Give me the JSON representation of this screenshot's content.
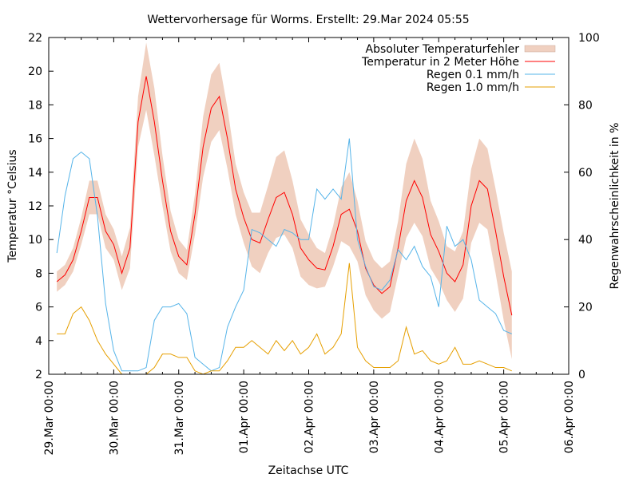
{
  "chart_data": {
    "type": "line",
    "title": "Wettervorhersage für Worms. Erstellt: 29.Mar 2024 05:55",
    "xlabel": "Zeitachse UTC",
    "ylabel": "Temperatur °Celsius",
    "y2label": "Regenwahrscheinlichkeit in %",
    "ylim": [
      2,
      22
    ],
    "y2lim": [
      0,
      100
    ],
    "yticks": [
      "2",
      "4",
      "6",
      "8",
      "10",
      "12",
      "14",
      "16",
      "18",
      "20",
      "22"
    ],
    "y2ticks": [
      "0",
      "20",
      "40",
      "60",
      "80",
      "100"
    ],
    "xticks": [
      "29.Mar 00:00",
      "30.Mar 00:00",
      "31.Mar 00:00",
      "01.Apr 00:00",
      "02.Apr 00:00",
      "03.Apr 00:00",
      "04.Apr 00:00",
      "05.Apr 00:00",
      "06.Apr 00:00"
    ],
    "x_start": "29.Mar 03:00",
    "x_step_hours": 3,
    "legend_position": "top-right",
    "series": [
      {
        "name": "Absoluter Temperaturfehler",
        "color": "#f0d0c0",
        "kind": "band",
        "values": [
          0.6,
          0.6,
          0.7,
          0.8,
          1.0,
          1.0,
          1.0,
          0.9,
          1.0,
          1.2,
          1.5,
          2.0,
          2.0,
          1.5,
          1.2,
          1.0,
          0.9,
          1.2,
          1.8,
          2.0,
          2.0,
          1.8,
          1.5,
          1.5,
          1.6,
          1.8,
          2.0,
          2.4,
          2.5,
          2.0,
          1.7,
          1.5,
          1.2,
          1.0,
          1.2,
          1.6,
          2.2,
          1.8,
          1.6,
          1.5,
          1.5,
          1.5,
          1.6,
          2.2,
          2.5,
          2.3,
          2.0,
          1.8,
          1.6,
          1.8,
          2.0,
          2.2,
          2.5,
          2.4,
          2.5,
          2.6,
          2.6
        ]
      },
      {
        "name": "Temperatur in 2 Meter Höhe",
        "color": "#ff0000",
        "axis": "left",
        "values": [
          7.5,
          7.9,
          8.8,
          10.5,
          12.5,
          12.5,
          10.5,
          9.7,
          8.0,
          9.5,
          17.0,
          19.7,
          17.0,
          13.5,
          10.5,
          9.0,
          8.5,
          11.5,
          15.5,
          17.8,
          18.5,
          16.0,
          13.0,
          11.3,
          10.0,
          9.8,
          11.2,
          12.5,
          12.8,
          11.5,
          9.5,
          8.8,
          8.3,
          8.2,
          9.6,
          11.5,
          11.8,
          10.5,
          8.3,
          7.3,
          6.8,
          7.2,
          9.5,
          12.3,
          13.5,
          12.5,
          10.3,
          9.3,
          8.0,
          7.5,
          8.5,
          12.0,
          13.5,
          13.0,
          10.5,
          7.8,
          5.5
        ]
      },
      {
        "name": "Regen 0.1 mm/h",
        "color": "#56b4e9",
        "axis": "right",
        "values": [
          36,
          53,
          64,
          66,
          64,
          47,
          21,
          7,
          1,
          1,
          1,
          2,
          16,
          20,
          20,
          21,
          18,
          5,
          3,
          1,
          2,
          14,
          20,
          25,
          43,
          42,
          40,
          38,
          43,
          42,
          40,
          40,
          55,
          52,
          55,
          52,
          70,
          40,
          32,
          26,
          25,
          28,
          37,
          34,
          38,
          32,
          29,
          20,
          44,
          38,
          40,
          34,
          22,
          20,
          18,
          13,
          12
        ]
      },
      {
        "name": "Regen 1.0 mm/h",
        "color": "#e69f00",
        "axis": "right",
        "values": [
          12,
          12,
          18,
          20,
          16,
          10,
          6,
          3,
          0,
          0,
          0,
          0,
          2,
          6,
          6,
          5,
          5,
          1,
          0,
          1,
          1,
          4,
          8,
          8,
          10,
          8,
          6,
          10,
          7,
          10,
          6,
          8,
          12,
          6,
          8,
          12,
          33,
          8,
          4,
          2,
          2,
          2,
          4,
          14,
          6,
          7,
          4,
          3,
          4,
          8,
          3,
          3,
          4,
          3,
          2,
          2,
          1
        ]
      }
    ]
  }
}
